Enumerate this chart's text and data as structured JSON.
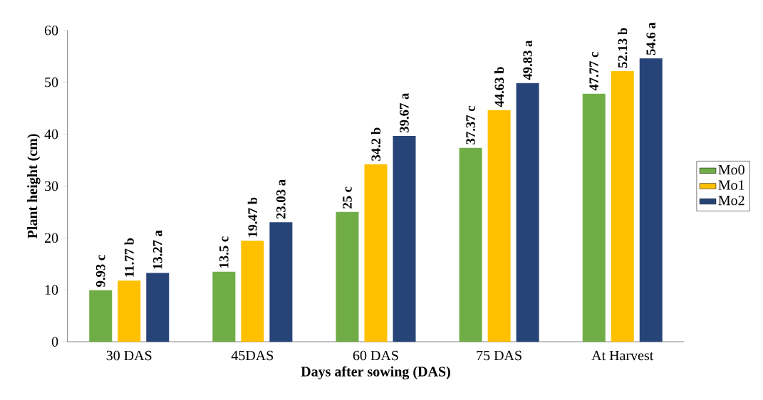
{
  "chart_data": {
    "type": "bar",
    "xlabel": "Days after sowing (DAS)",
    "ylabel": "Plant height (cm)",
    "categories": [
      "30 DAS",
      "45DAS",
      "60 DAS",
      "75 DAS",
      "At Harvest"
    ],
    "series": [
      {
        "name": "Mo0",
        "color": "#70ad47",
        "values": [
          9.93,
          13.5,
          25,
          37.37,
          47.77
        ],
        "value_labels": [
          "9.93 c",
          "13.5 c",
          "25 c",
          "37.37 c",
          "47.77 c"
        ]
      },
      {
        "name": "Mo1",
        "color": "#ffc000",
        "values": [
          11.77,
          19.47,
          34.2,
          44.63,
          52.13
        ],
        "value_labels": [
          "11.77 b",
          "19.47 b",
          "34.2 b",
          "44.63 b",
          "52.13 b"
        ]
      },
      {
        "name": "Mo2",
        "color": "#264478",
        "values": [
          13.27,
          23.03,
          39.67,
          49.83,
          54.6
        ],
        "value_labels": [
          "13.27 a",
          "23.03 a",
          "39.67 a",
          "49.83 a",
          "54.6 a"
        ]
      }
    ],
    "ylim": [
      0,
      60
    ],
    "yticks": [
      0,
      10,
      20,
      30,
      40,
      50,
      60
    ],
    "grid": false,
    "legend": "right"
  }
}
